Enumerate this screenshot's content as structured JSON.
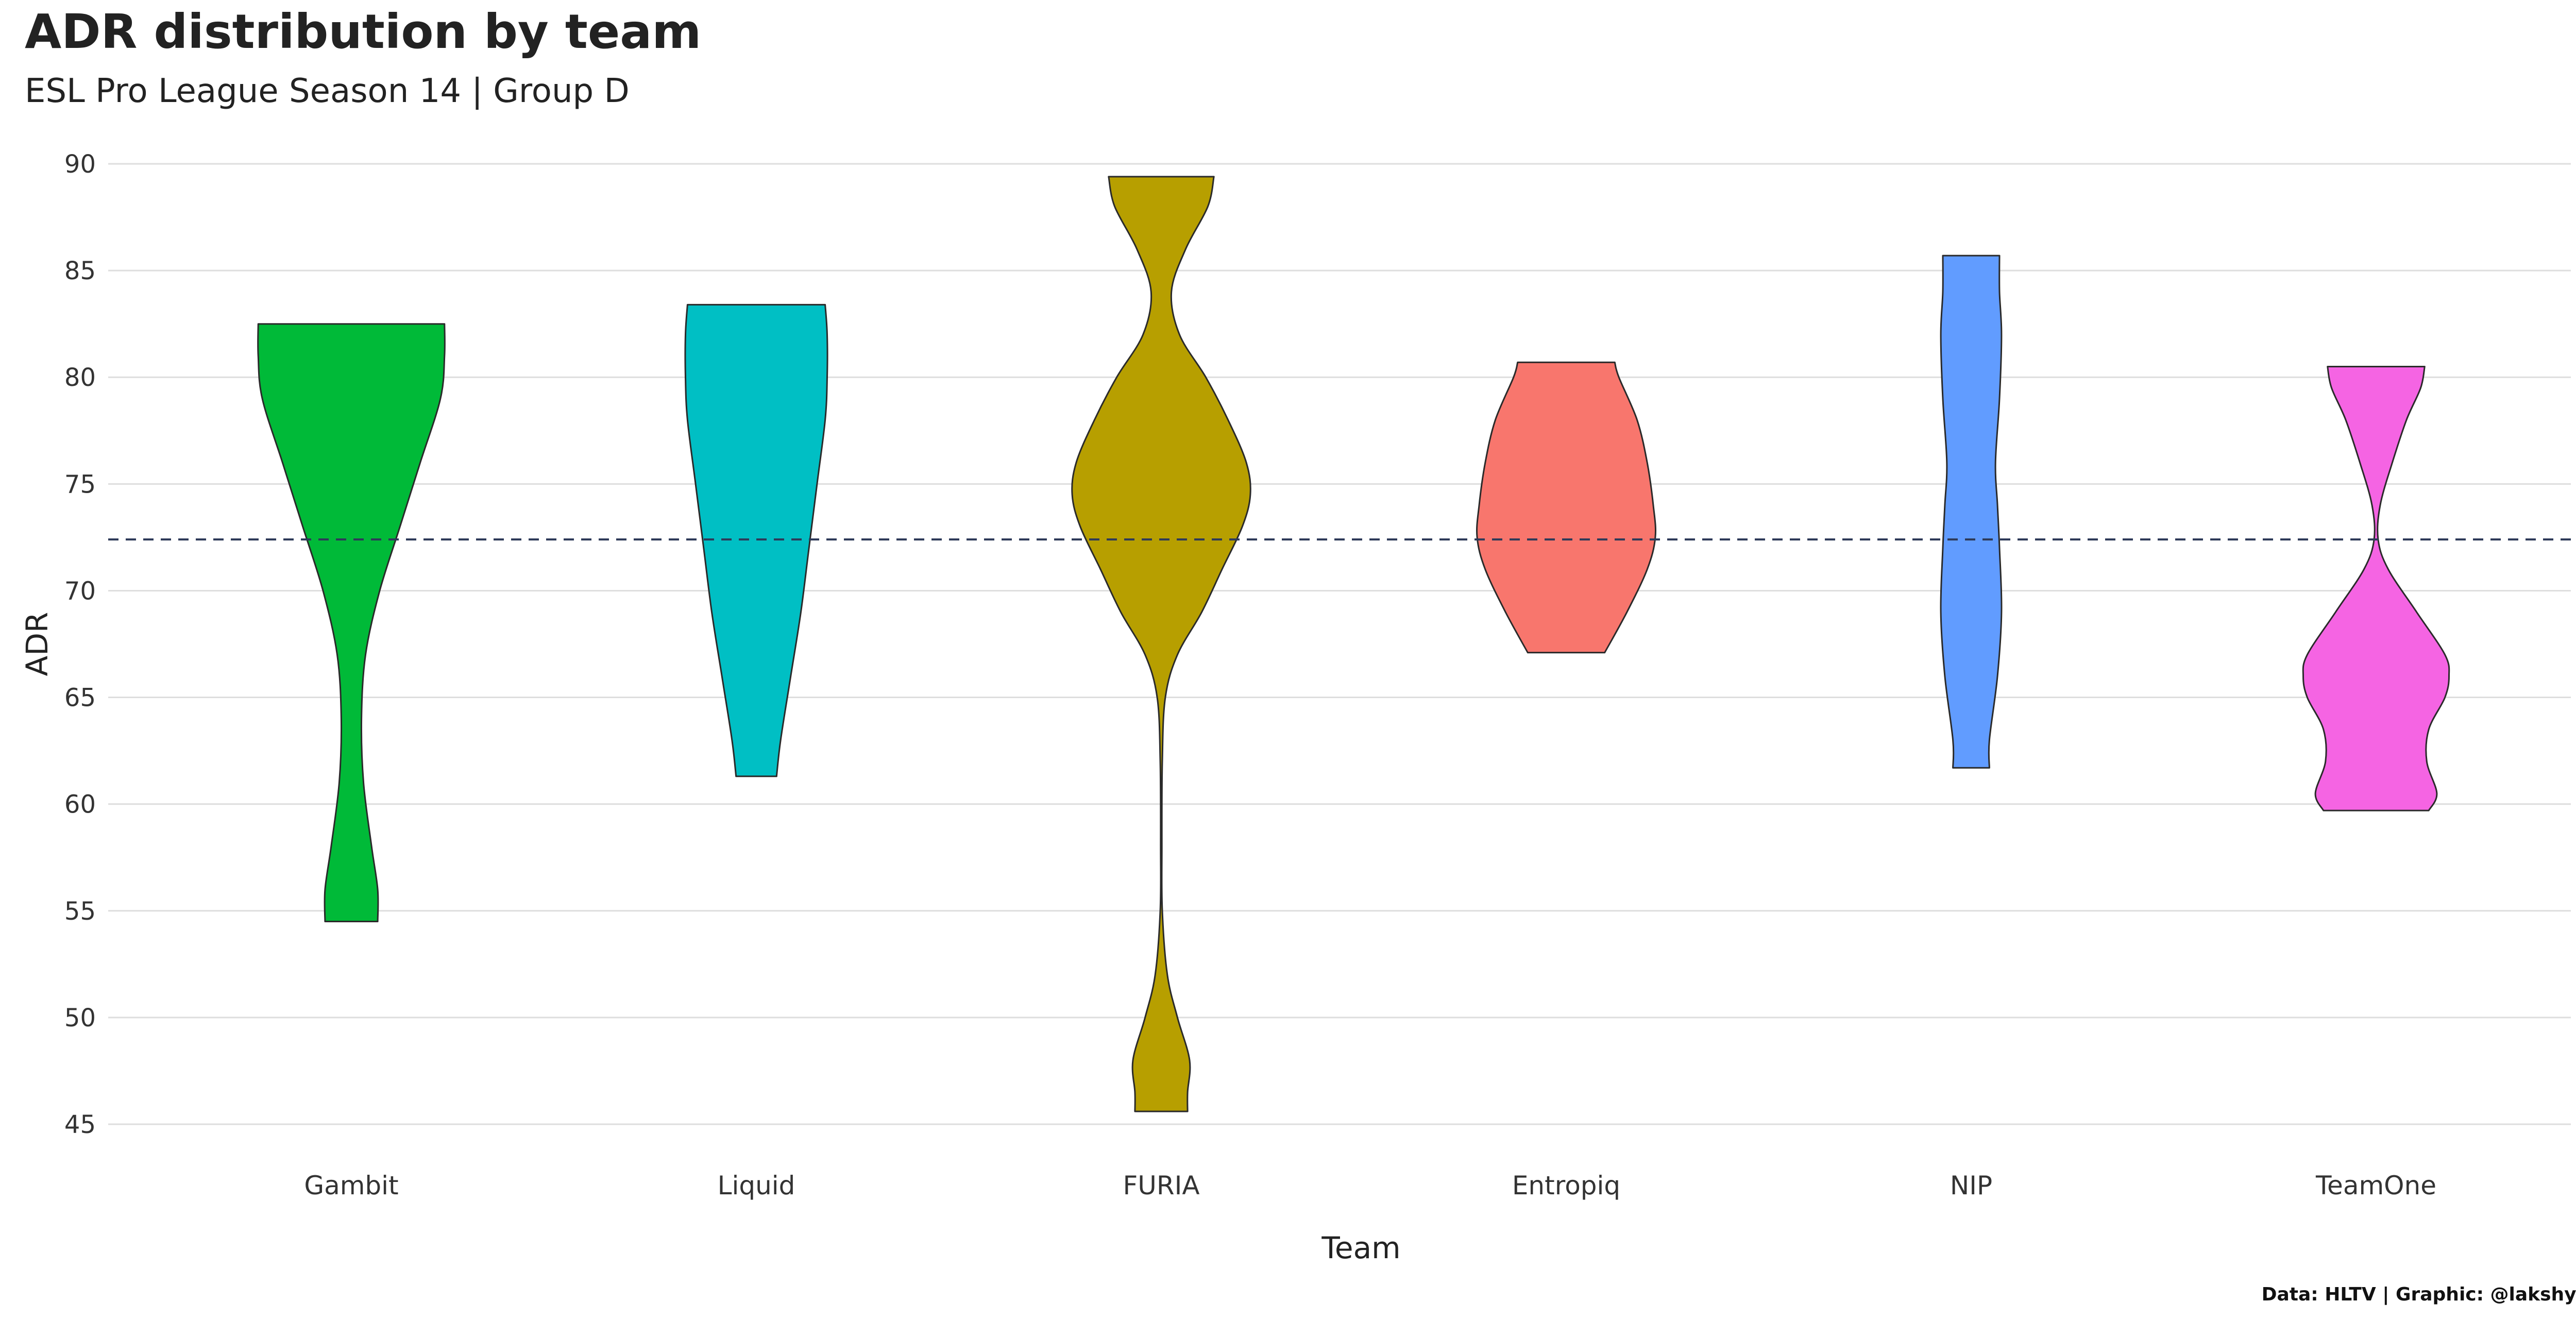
{
  "chart_data": {
    "type": "violin",
    "title": "ADR distribution by team",
    "subtitle": "ESL Pro League Season 14 | Group D",
    "caption": "Data: HLTV | Graphic: @lakshyaag",
    "xlabel": "Team",
    "ylabel": "ADR",
    "ylim": [
      45,
      90
    ],
    "yticks": [
      45,
      50,
      55,
      60,
      65,
      70,
      75,
      80,
      85,
      90
    ],
    "grid": true,
    "legend": "none",
    "reference_line": {
      "y": 72.4,
      "style": "dashed",
      "color": "#2e3a59"
    },
    "categories": [
      "Gambit",
      "Liquid",
      "FURIA",
      "Entropiq",
      "NIP",
      "TeamOne"
    ],
    "series": [
      {
        "category": "Gambit",
        "color": "#00ba38",
        "min": 54.5,
        "max": 82.5,
        "profile": [
          [
            82.5,
            0.46
          ],
          [
            81,
            0.46
          ],
          [
            79,
            0.44
          ],
          [
            76,
            0.34
          ],
          [
            73,
            0.24
          ],
          [
            70,
            0.14
          ],
          [
            67,
            0.07
          ],
          [
            64,
            0.05
          ],
          [
            61,
            0.06
          ],
          [
            58,
            0.1
          ],
          [
            56,
            0.13
          ],
          [
            54.5,
            0.13
          ]
        ]
      },
      {
        "category": "Liquid",
        "color": "#00bfc4",
        "min": 61.3,
        "max": 83.4,
        "profile": [
          [
            83.4,
            0.34
          ],
          [
            82,
            0.35
          ],
          [
            80,
            0.35
          ],
          [
            78,
            0.34
          ],
          [
            75,
            0.3
          ],
          [
            72,
            0.26
          ],
          [
            69,
            0.22
          ],
          [
            66,
            0.17
          ],
          [
            63,
            0.12
          ],
          [
            61.3,
            0.1
          ]
        ]
      },
      {
        "category": "FURIA",
        "color": "#b79f00",
        "min": 45.6,
        "max": 89.4,
        "profile": [
          [
            89.4,
            0.26
          ],
          [
            88,
            0.23
          ],
          [
            86,
            0.12
          ],
          [
            84,
            0.05
          ],
          [
            82,
            0.09
          ],
          [
            80,
            0.22
          ],
          [
            78,
            0.33
          ],
          [
            76,
            0.42
          ],
          [
            74.5,
            0.44
          ],
          [
            73,
            0.4
          ],
          [
            71,
            0.3
          ],
          [
            69,
            0.2
          ],
          [
            67,
            0.08
          ],
          [
            65,
            0.02
          ],
          [
            62,
            0.005
          ],
          [
            58,
            0.003
          ],
          [
            55,
            0.005
          ],
          [
            52,
            0.03
          ],
          [
            50,
            0.08
          ],
          [
            48,
            0.14
          ],
          [
            46.5,
            0.13
          ],
          [
            45.6,
            0.13
          ]
        ]
      },
      {
        "category": "Entropiq",
        "color": "#f8766d",
        "min": 67.1,
        "max": 80.7,
        "profile": [
          [
            80.7,
            0.24
          ],
          [
            80,
            0.26
          ],
          [
            78,
            0.35
          ],
          [
            76,
            0.4
          ],
          [
            74,
            0.43
          ],
          [
            72.5,
            0.44
          ],
          [
            71,
            0.4
          ],
          [
            69,
            0.3
          ],
          [
            67.1,
            0.19
          ]
        ]
      },
      {
        "category": "NIP",
        "color": "#619cff",
        "min": 61.7,
        "max": 85.7,
        "profile": [
          [
            85.7,
            0.14
          ],
          [
            84,
            0.14
          ],
          [
            82,
            0.15
          ],
          [
            79,
            0.14
          ],
          [
            76,
            0.12
          ],
          [
            74,
            0.13
          ],
          [
            72,
            0.14
          ],
          [
            69,
            0.15
          ],
          [
            66,
            0.13
          ],
          [
            63,
            0.09
          ],
          [
            61.7,
            0.09
          ]
        ]
      },
      {
        "category": "TeamOne",
        "color": "#f564e3",
        "min": 59.7,
        "max": 80.5,
        "profile": [
          [
            80.5,
            0.24
          ],
          [
            79.5,
            0.22
          ],
          [
            78,
            0.15
          ],
          [
            76,
            0.08
          ],
          [
            74,
            0.02
          ],
          [
            72.4,
            0.01
          ],
          [
            71,
            0.06
          ],
          [
            69,
            0.2
          ],
          [
            67,
            0.34
          ],
          [
            66,
            0.36
          ],
          [
            65,
            0.34
          ],
          [
            63.5,
            0.26
          ],
          [
            62,
            0.25
          ],
          [
            60.5,
            0.3
          ],
          [
            59.7,
            0.26
          ]
        ]
      }
    ]
  }
}
